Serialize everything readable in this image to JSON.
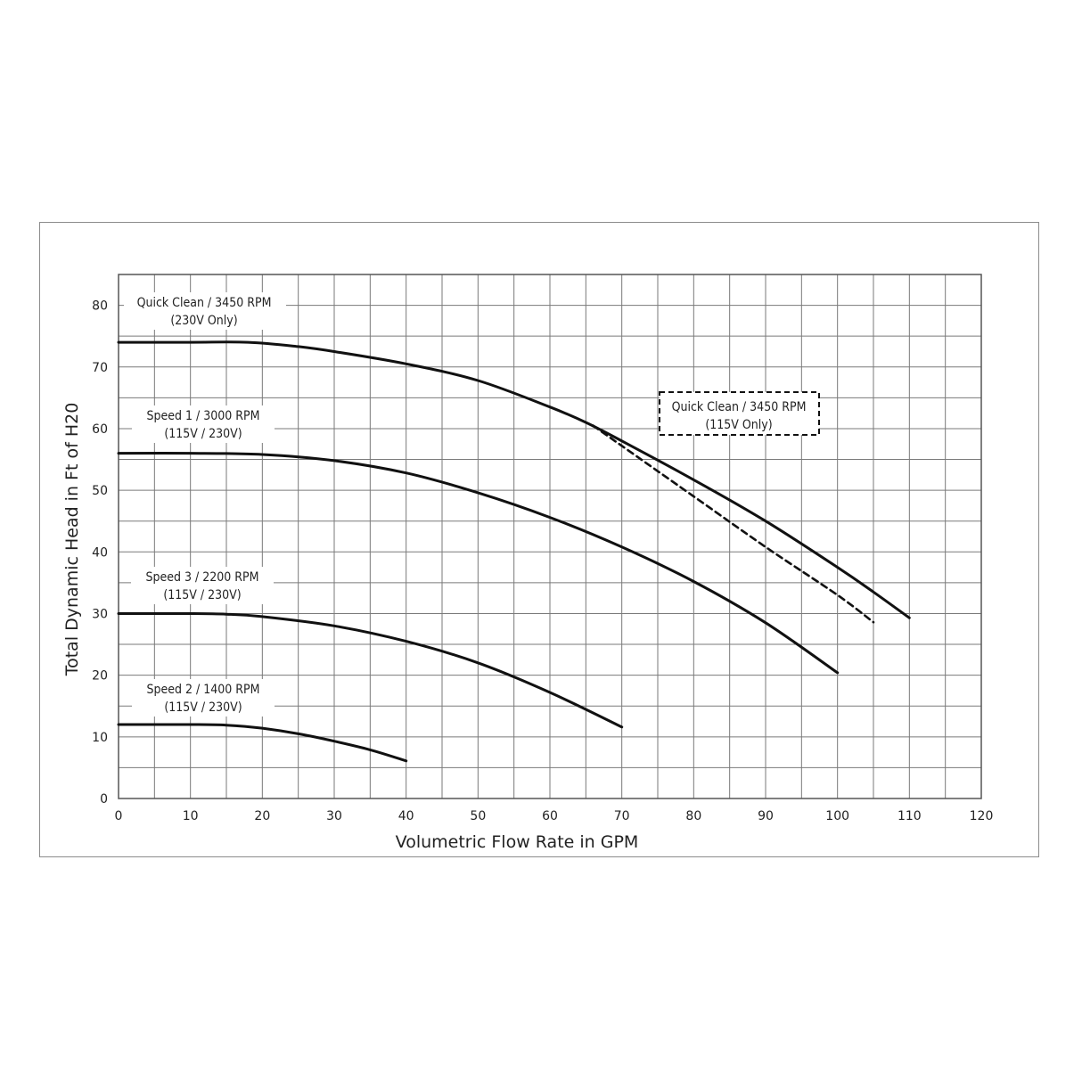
{
  "chart_data": {
    "type": "line",
    "title": "",
    "xlabel": "Volumetric Flow Rate in GPM",
    "ylabel": "Total Dynamic Head in Ft of H20",
    "xlim": [
      0,
      120
    ],
    "ylim": [
      0,
      85
    ],
    "x_ticks": [
      0,
      10,
      20,
      30,
      40,
      50,
      60,
      70,
      80,
      90,
      100,
      110,
      120
    ],
    "y_ticks": [
      0,
      10,
      20,
      30,
      40,
      50,
      60,
      70,
      80
    ],
    "grid": true,
    "colors": {
      "line": "#111111",
      "grid": "#7a7a7a",
      "frame": "#8c8c8c"
    },
    "series": [
      {
        "name": "Quick Clean / 3450 RPM (230V Only)",
        "label_lines": [
          "Quick Clean / 3450 RPM",
          "(230V Only)"
        ],
        "style": "solid",
        "x": [
          0,
          10,
          18,
          25,
          30,
          40,
          50,
          60,
          65,
          70,
          80,
          90,
          100,
          105,
          110
        ],
        "y": [
          74,
          74,
          74,
          73.3,
          72.5,
          70.5,
          67.8,
          63.5,
          61,
          58,
          51.7,
          45,
          37.5,
          33.5,
          29.3
        ]
      },
      {
        "name": "Quick Clean / 3450 RPM (115V Only)",
        "label_lines": [
          "Quick Clean / 3450 RPM",
          "(115V Only)"
        ],
        "label_boxed": true,
        "style": "dashed",
        "x": [
          66,
          70,
          80,
          90,
          100,
          105
        ],
        "y": [
          60.5,
          57.2,
          49,
          40.8,
          33,
          28.6
        ]
      },
      {
        "name": "Speed 1 / 3000 RPM (115V / 230V)",
        "label_lines": [
          "Speed 1 / 3000 RPM",
          "(115V / 230V)"
        ],
        "style": "solid",
        "x": [
          0,
          10,
          20,
          30,
          40,
          50,
          60,
          70,
          80,
          90,
          100
        ],
        "y": [
          56,
          56,
          55.8,
          54.8,
          52.8,
          49.6,
          45.6,
          40.8,
          35.2,
          28.5,
          20.4
        ]
      },
      {
        "name": "Speed 3 / 2200 RPM (115V / 230V)",
        "label_lines": [
          "Speed 3 / 2200 RPM",
          "(115V / 230V)"
        ],
        "style": "solid",
        "x": [
          0,
          10,
          15,
          20,
          30,
          40,
          50,
          60,
          70
        ],
        "y": [
          30,
          30,
          29.9,
          29.5,
          28,
          25.5,
          22,
          17.2,
          11.6
        ]
      },
      {
        "name": "Speed 2 / 1400 RPM (115V / 230V)",
        "label_lines": [
          "Speed 2 / 1400 RPM",
          "(115V / 230V)"
        ],
        "style": "solid",
        "x": [
          0,
          10,
          15,
          20,
          25,
          30,
          35,
          40
        ],
        "y": [
          12,
          12,
          11.9,
          11.4,
          10.5,
          9.3,
          7.9,
          6.1
        ]
      }
    ]
  }
}
